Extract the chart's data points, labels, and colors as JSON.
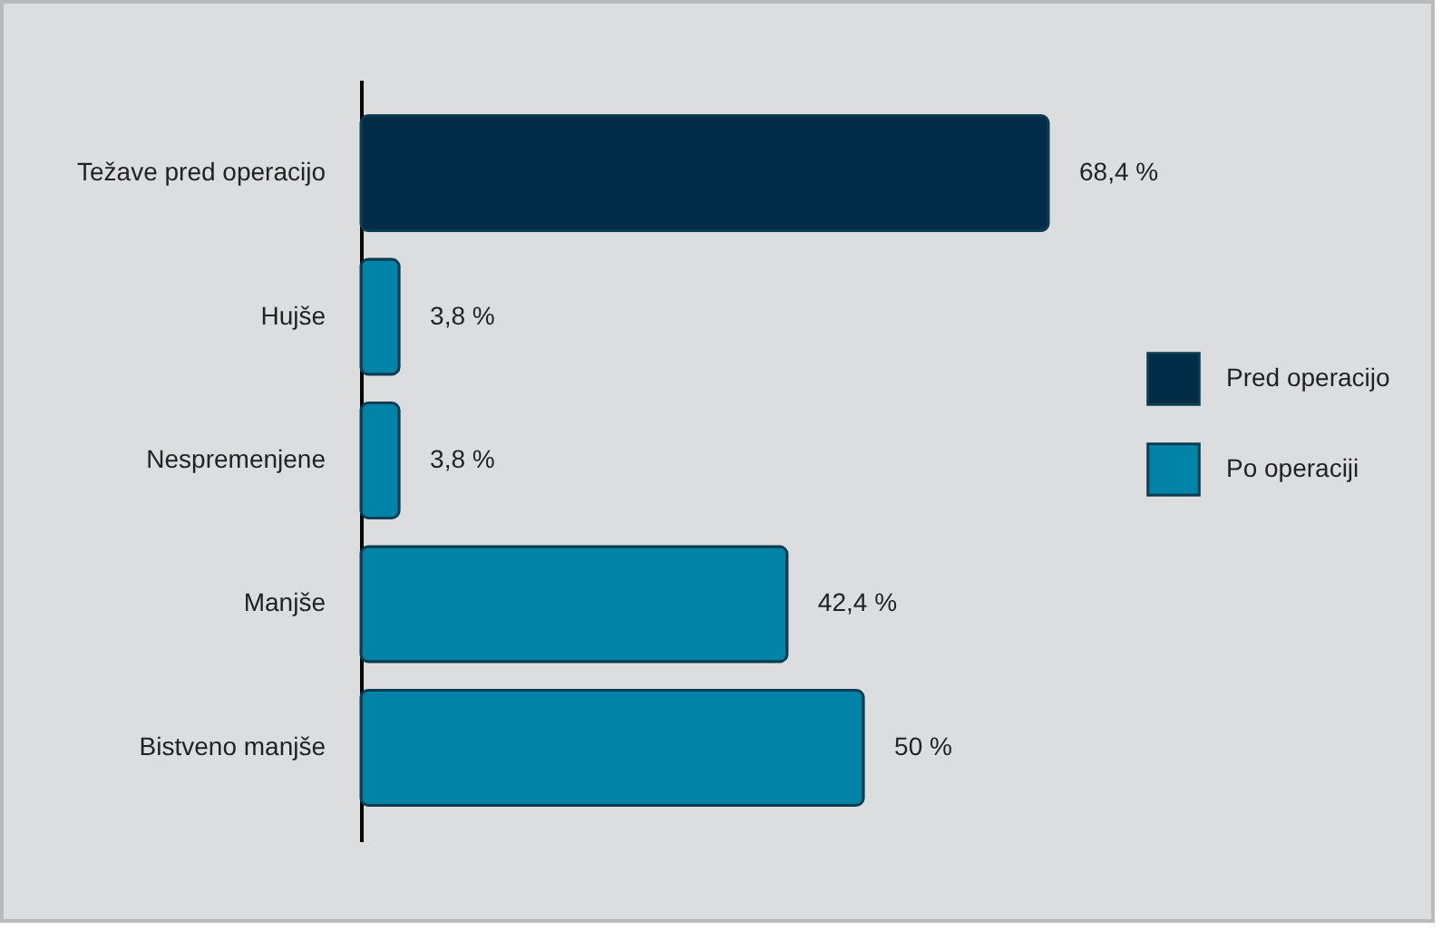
{
  "chart_data": {
    "type": "bar",
    "orientation": "horizontal",
    "categories": [
      "Težave pred operacijo",
      "Hujše",
      "Nespremenjene",
      "Manjše",
      "Bistveno manjše"
    ],
    "series": [
      {
        "name": "Pred operacijo",
        "color": "#022c47",
        "values": [
          68.4,
          null,
          null,
          null,
          null
        ],
        "value_labels": [
          "68,4 %",
          null,
          null,
          null,
          null
        ]
      },
      {
        "name": "Po operaciji",
        "color": "#0083a6",
        "values": [
          null,
          3.8,
          3.8,
          42.4,
          50
        ],
        "value_labels": [
          null,
          "3,8 %",
          "3,8 %",
          "42,4 %",
          "50 %"
        ]
      }
    ],
    "legend": "right"
  }
}
